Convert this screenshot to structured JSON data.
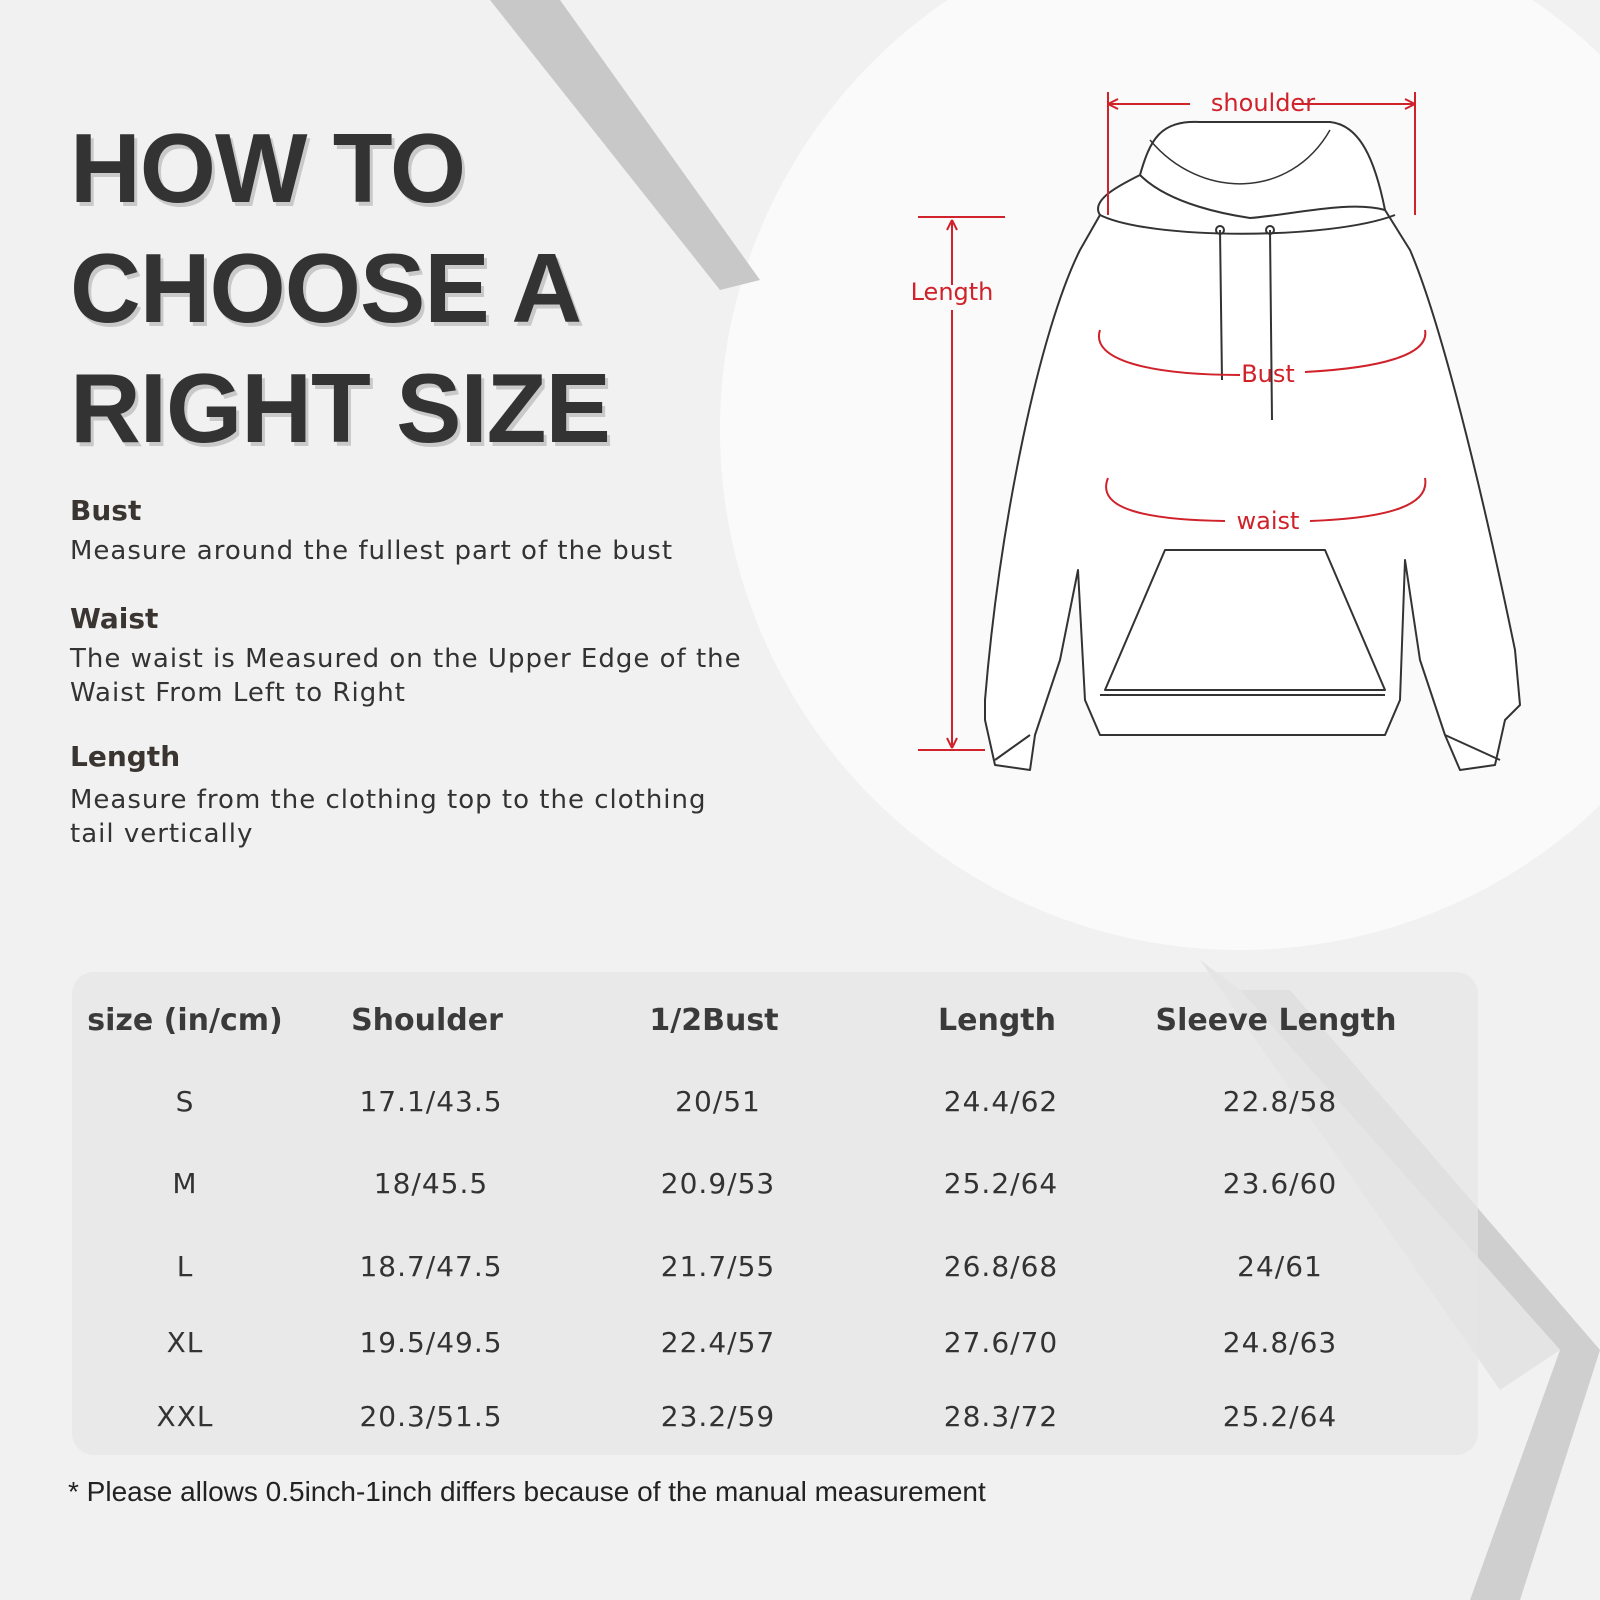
{
  "title_lines": [
    "HOW TO",
    "CHOOSE A",
    "RIGHT SIZE"
  ],
  "guide": [
    {
      "term": "Bust",
      "description": "Measure around the fullest part of the bust"
    },
    {
      "term": "Waist",
      "description": "The waist is Measured on the Upper Edge of the Waist From Left to Right"
    },
    {
      "term": "Length",
      "description": "Measure from the clothing top to the clothing tail vertically"
    }
  ],
  "diagram": {
    "labels": {
      "shoulder": "shoulder",
      "length": "Length",
      "bust": "Bust",
      "waist": "waist"
    },
    "accent_color": "#d0222a"
  },
  "size_table": {
    "headers": [
      "size (in/cm)",
      "Shoulder",
      "1/2Bust",
      "Length",
      "Sleeve Length"
    ],
    "rows": [
      [
        "S",
        "17.1/43.5",
        "20/51",
        "24.4/62",
        "22.8/58"
      ],
      [
        "M",
        "18/45.5",
        "20.9/53",
        "25.2/64",
        "23.6/60"
      ],
      [
        "L",
        "18.7/47.5",
        "21.7/55",
        "26.8/68",
        "24/61"
      ],
      [
        "XL",
        "19.5/49.5",
        "22.4/57",
        "27.6/70",
        "24.8/63"
      ],
      [
        "XXL",
        "20.3/51.5",
        "23.2/59",
        "28.3/72",
        "25.2/64"
      ]
    ]
  },
  "footnote": "* Please allows 0.5inch-1inch differs because of the manual measurement"
}
